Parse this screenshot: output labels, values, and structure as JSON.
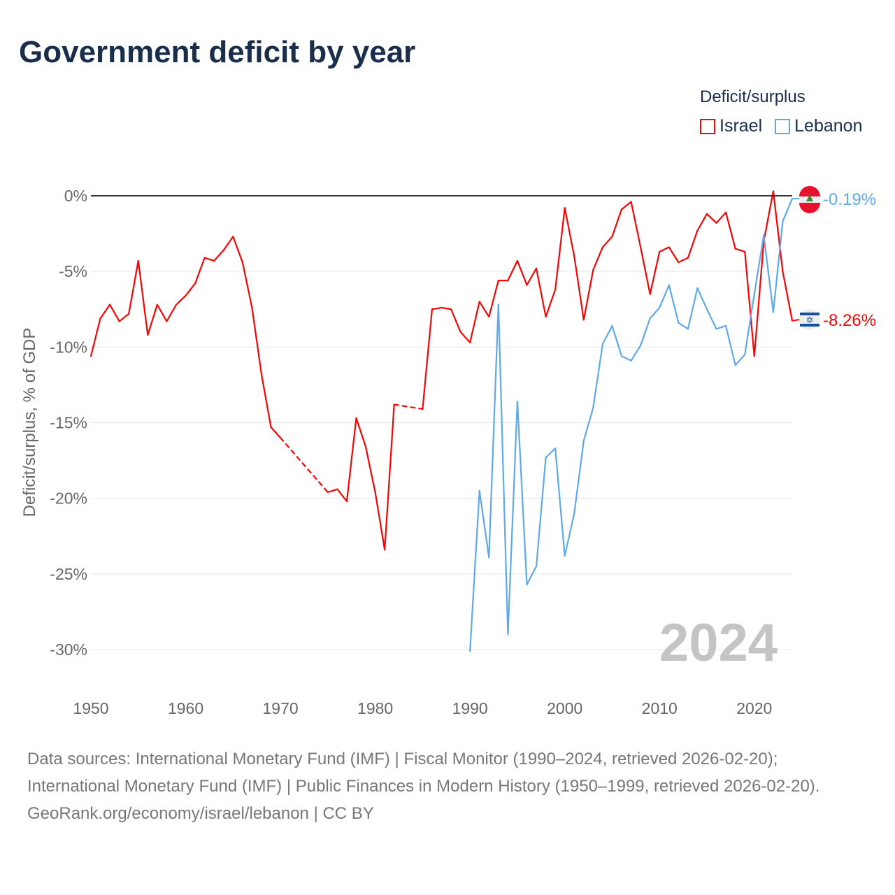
{
  "title": "Government deficit by year",
  "legend": {
    "title": "Deficit/surplus",
    "items": [
      "Israel",
      "Lebanon"
    ]
  },
  "footer": {
    "sources": "Data sources: International Monetary Fund (IMF) | Fiscal Monitor (1990–2024, retrieved 2026-02-20); International Monetary Fund (IMF) | Public Finances in Modern History (1950–1999, retrieved 2026-02-20).",
    "credit": "GeoRank.org/economy/israel/lebanon | CC BY"
  },
  "chart_data": {
    "type": "line",
    "title": "Government deficit by year",
    "ylabel": "Deficit/surplus, % of GDP",
    "xlabel": "",
    "year_label": "2024",
    "xlim": [
      1950,
      2024
    ],
    "ylim": [
      -30,
      0
    ],
    "xticks": [
      1950,
      1960,
      1970,
      1980,
      1990,
      2000,
      2010,
      2020
    ],
    "yticks": [
      0,
      -5,
      -10,
      -15,
      -20,
      -25,
      -30
    ],
    "ytick_labels": [
      "0%",
      "-5%",
      "-10%",
      "-15%",
      "-20%",
      "-25%",
      "-30%"
    ],
    "legend_placement": "top-right",
    "series": [
      {
        "name": "Israel",
        "color": "#ff0000",
        "end_label": "-8.26%",
        "points": [
          [
            1950,
            -10.6
          ],
          [
            1951,
            -8.1
          ],
          [
            1952,
            -7.2
          ],
          [
            1953,
            -8.3
          ],
          [
            1954,
            -7.8
          ],
          [
            1955,
            -4.3
          ],
          [
            1956,
            -9.2
          ],
          [
            1957,
            -7.2
          ],
          [
            1958,
            -8.3
          ],
          [
            1959,
            -7.2
          ],
          [
            1960,
            -6.6
          ],
          [
            1961,
            -5.8
          ],
          [
            1962,
            -4.1
          ],
          [
            1963,
            -4.3
          ],
          [
            1964,
            -3.6
          ],
          [
            1965,
            -2.7
          ],
          [
            1966,
            -4.4
          ],
          [
            1967,
            -7.4
          ],
          [
            1968,
            -11.8
          ],
          [
            1969,
            -15.3
          ],
          [
            1970,
            -16.0
          ],
          [
            1975,
            -19.6
          ],
          [
            1976,
            -19.4
          ],
          [
            1977,
            -20.2
          ],
          [
            1978,
            -14.7
          ],
          [
            1979,
            -16.6
          ],
          [
            1980,
            -19.6
          ],
          [
            1981,
            -23.4
          ],
          [
            1982,
            -13.8
          ],
          [
            1985,
            -14.1
          ],
          [
            1986,
            -7.5
          ],
          [
            1987,
            -7.4
          ],
          [
            1988,
            -7.5
          ],
          [
            1989,
            -9.0
          ],
          [
            1990,
            -9.7
          ],
          [
            1991,
            -7.0
          ],
          [
            1992,
            -8.0
          ],
          [
            1993,
            -5.6
          ],
          [
            1994,
            -5.6
          ],
          [
            1995,
            -4.3
          ],
          [
            1996,
            -5.9
          ],
          [
            1997,
            -4.8
          ],
          [
            1998,
            -8.0
          ],
          [
            1999,
            -6.2
          ],
          [
            2000,
            -0.8
          ],
          [
            2001,
            -4.0
          ],
          [
            2002,
            -8.2
          ],
          [
            2003,
            -4.9
          ],
          [
            2004,
            -3.4
          ],
          [
            2005,
            -2.7
          ],
          [
            2006,
            -0.9
          ],
          [
            2007,
            -0.4
          ],
          [
            2008,
            -3.4
          ],
          [
            2009,
            -6.5
          ],
          [
            2010,
            -3.7
          ],
          [
            2011,
            -3.4
          ],
          [
            2012,
            -4.4
          ],
          [
            2013,
            -4.1
          ],
          [
            2014,
            -2.3
          ],
          [
            2015,
            -1.2
          ],
          [
            2016,
            -1.8
          ],
          [
            2017,
            -1.1
          ],
          [
            2018,
            -3.5
          ],
          [
            2019,
            -3.7
          ],
          [
            2020,
            -10.6
          ],
          [
            2021,
            -3.0
          ],
          [
            2022,
            0.3
          ],
          [
            2023,
            -5.0
          ],
          [
            2024,
            -8.26
          ]
        ]
      },
      {
        "name": "Lebanon",
        "color": "#5ea8ec",
        "end_label": "-0.19%",
        "points": [
          [
            1990,
            -30.1
          ],
          [
            1991,
            -19.5
          ],
          [
            1992,
            -23.9
          ],
          [
            1993,
            -7.2
          ],
          [
            1994,
            -29.0
          ],
          [
            1995,
            -13.6
          ],
          [
            1996,
            -25.7
          ],
          [
            1997,
            -24.5
          ],
          [
            1998,
            -17.3
          ],
          [
            1999,
            -16.7
          ],
          [
            2000,
            -23.8
          ],
          [
            2001,
            -21.0
          ],
          [
            2002,
            -16.2
          ],
          [
            2003,
            -14.0
          ],
          [
            2004,
            -9.8
          ],
          [
            2005,
            -8.6
          ],
          [
            2006,
            -10.6
          ],
          [
            2007,
            -10.9
          ],
          [
            2008,
            -9.9
          ],
          [
            2009,
            -8.1
          ],
          [
            2010,
            -7.4
          ],
          [
            2011,
            -5.9
          ],
          [
            2012,
            -8.4
          ],
          [
            2013,
            -8.8
          ],
          [
            2014,
            -6.1
          ],
          [
            2015,
            -7.5
          ],
          [
            2016,
            -8.8
          ],
          [
            2017,
            -8.6
          ],
          [
            2018,
            -11.2
          ],
          [
            2019,
            -10.5
          ],
          [
            2020,
            -6.5
          ],
          [
            2021,
            -2.6
          ],
          [
            2022,
            -7.7
          ],
          [
            2023,
            -1.7
          ],
          [
            2024,
            -0.19
          ]
        ]
      }
    ]
  }
}
